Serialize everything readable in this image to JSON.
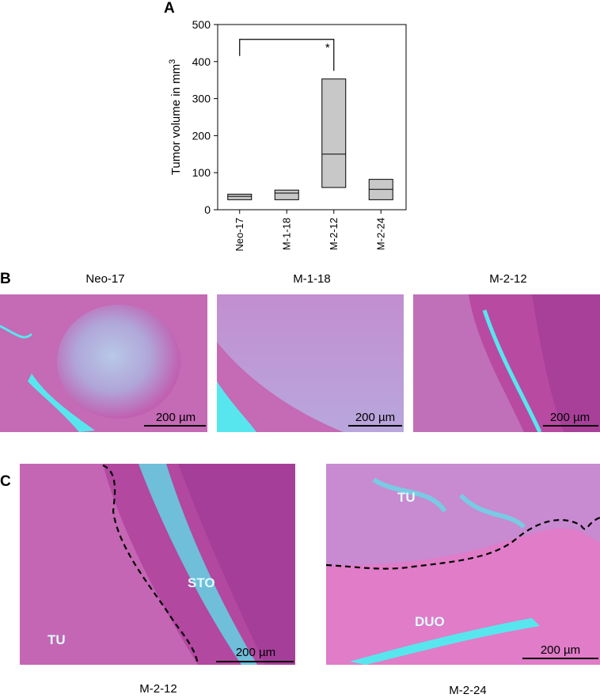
{
  "panel_labels": {
    "a": "A",
    "b": "B",
    "c": "C"
  },
  "chart_data": {
    "type": "box",
    "title": "",
    "ylabel": "Tumor volume in mm",
    "ylabel_superscript": "3",
    "ylim": [
      0,
      500
    ],
    "yticks": [
      0,
      100,
      200,
      300,
      400,
      500
    ],
    "categories": [
      "Neo-17",
      "M-1-18",
      "M-2-12",
      "M-2-24"
    ],
    "boxes": [
      {
        "name": "Neo-17",
        "q1": 27,
        "median": 36,
        "q3": 42
      },
      {
        "name": "M-1-18",
        "q1": 27,
        "median": 45,
        "q3": 53
      },
      {
        "name": "M-2-12",
        "q1": 60,
        "median": 150,
        "q3": 353
      },
      {
        "name": "M-2-24",
        "q1": 27,
        "median": 55,
        "q3": 82
      }
    ],
    "box_color": "#c8c8c8",
    "significance": {
      "from": "Neo-17",
      "to": "M-2-12",
      "mark": "*"
    },
    "grid": false
  },
  "panel_b": {
    "images": [
      {
        "caption": "Neo-17",
        "scalebar": "200 µm"
      },
      {
        "caption": "M-1-18",
        "scalebar": "200 µm"
      },
      {
        "caption": "M-2-12",
        "scalebar": "200 µm"
      }
    ]
  },
  "panel_c": {
    "images": [
      {
        "caption": "M-2-12",
        "scalebar": "200 µm",
        "labels": [
          "STO",
          "TU"
        ]
      },
      {
        "caption": "M-2-24",
        "scalebar": "200 µm",
        "labels": [
          "TU",
          "DUO"
        ]
      }
    ]
  },
  "colors": {
    "tissue_pink": "#c04aa8",
    "tissue_light": "#d89ad6",
    "lumen": "#58e6ee"
  }
}
